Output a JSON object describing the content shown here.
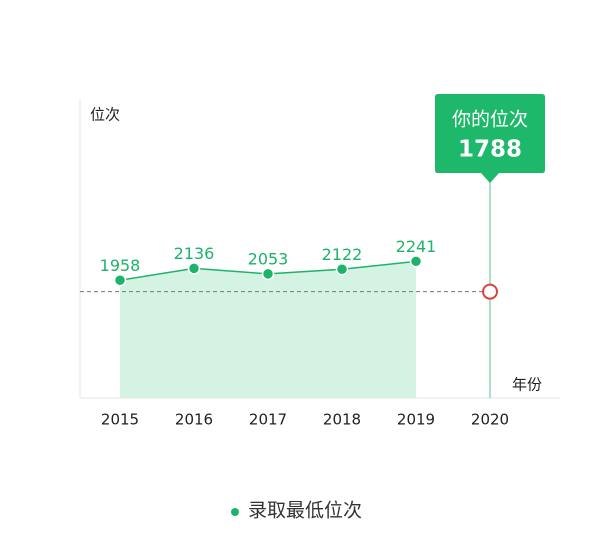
{
  "chart_data": {
    "type": "area",
    "y_label": "位次",
    "x_label": "年份",
    "categories": [
      "2015",
      "2016",
      "2017",
      "2018",
      "2019",
      "2020"
    ],
    "series": [
      {
        "name": "录取最低位次",
        "color": "#1cb46a",
        "fill": "#d4f3e2",
        "values": [
          1958,
          2136,
          2053,
          2122,
          2241,
          null
        ]
      }
    ],
    "highlight": {
      "label": "你的位次",
      "value": 1788,
      "category": "2020",
      "color": "#1eb86a",
      "marker_color": "#d9433b"
    },
    "ylim": [
      200,
      4650
    ]
  }
}
